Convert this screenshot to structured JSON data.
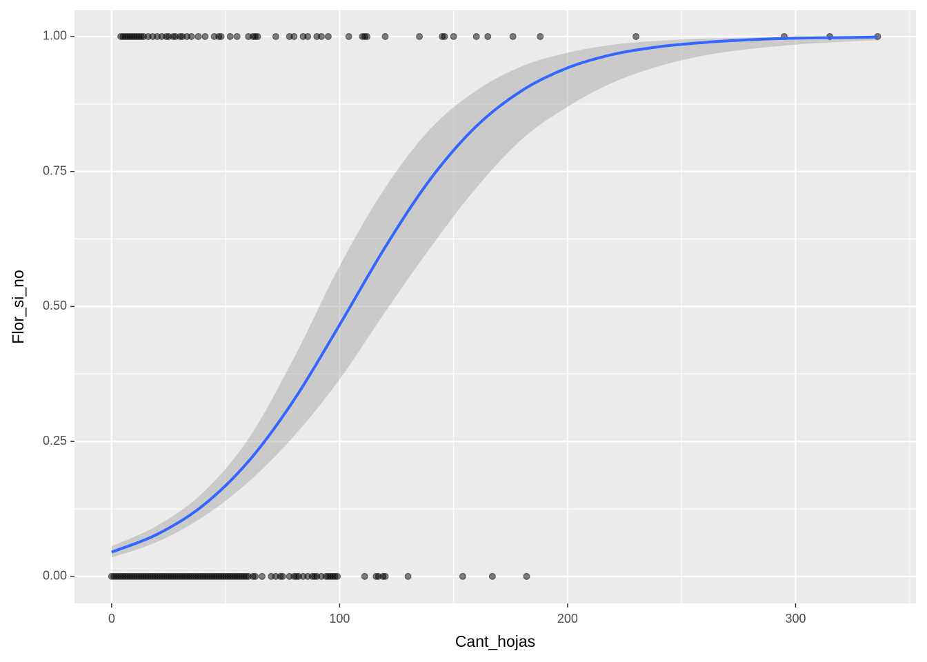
{
  "chart_data": {
    "type": "scatter",
    "x_label": "Cant_hojas",
    "y_label": "Flor_si_no",
    "xlim": [
      -16.3,
      352.8
    ],
    "ylim": [
      -0.05,
      1.0485
    ],
    "xticks": [
      0,
      100,
      200,
      300
    ],
    "yticks": [
      {
        "value": 0,
        "label": "0.00"
      },
      {
        "value": 0.25,
        "label": "0.25"
      },
      {
        "value": 0.5,
        "label": "0.50"
      },
      {
        "value": 0.75,
        "label": "0.75"
      },
      {
        "value": 1,
        "label": "1.00"
      }
    ],
    "x_minor_breaks": [
      50,
      150,
      250,
      350
    ],
    "y_minor_breaks": [
      0.125,
      0.375,
      0.625,
      0.875
    ],
    "grid": true,
    "series": [
      {
        "color": "#000000",
        "x": [
          4,
          5,
          6,
          7,
          8,
          9,
          10,
          11,
          12,
          13,
          14,
          16,
          18,
          20,
          22,
          24,
          25,
          27,
          28,
          30,
          31,
          33,
          35,
          38,
          41,
          45,
          47,
          48,
          52,
          55,
          60,
          62,
          63,
          64,
          72,
          78,
          80,
          84,
          86,
          90,
          92,
          95,
          104,
          110,
          111,
          112,
          120,
          135,
          145,
          146,
          150,
          160,
          165,
          176,
          188,
          230,
          295,
          315,
          336
        ],
        "values": [
          1,
          1,
          1,
          1,
          1,
          1,
          1,
          1,
          1,
          1,
          1,
          1,
          1,
          1,
          1,
          1,
          1,
          1,
          1,
          1,
          1,
          1,
          1,
          1,
          1,
          1,
          1,
          1,
          1,
          1,
          1,
          1,
          1,
          1,
          1,
          1,
          1,
          1,
          1,
          1,
          1,
          1,
          1,
          1,
          1,
          1,
          1,
          1,
          1,
          1,
          1,
          1,
          1,
          1,
          1,
          1,
          1,
          1,
          1
        ]
      },
      {
        "color": "#000000",
        "x": [
          0,
          1,
          2,
          3,
          4,
          5,
          6,
          7,
          8,
          9,
          10,
          11,
          12,
          13,
          14,
          15,
          16,
          17,
          18,
          19,
          20,
          21,
          22,
          23,
          24,
          25,
          26,
          27,
          28,
          29,
          30,
          31,
          32,
          33,
          34,
          35,
          36,
          37,
          38,
          39,
          40,
          41,
          42,
          43,
          44,
          45,
          46,
          47,
          48,
          49,
          50,
          51,
          52,
          53,
          54,
          55,
          56,
          57,
          58,
          59,
          60,
          62,
          63,
          66,
          70,
          72,
          74,
          75,
          78,
          80,
          81,
          82,
          84,
          86,
          88,
          89,
          90,
          92,
          94,
          95,
          96,
          97,
          98,
          99,
          111,
          116,
          117,
          119,
          120,
          130,
          154,
          167,
          182
        ],
        "values": [
          0,
          0,
          0,
          0,
          0,
          0,
          0,
          0,
          0,
          0,
          0,
          0,
          0,
          0,
          0,
          0,
          0,
          0,
          0,
          0,
          0,
          0,
          0,
          0,
          0,
          0,
          0,
          0,
          0,
          0,
          0,
          0,
          0,
          0,
          0,
          0,
          0,
          0,
          0,
          0,
          0,
          0,
          0,
          0,
          0,
          0,
          0,
          0,
          0,
          0,
          0,
          0,
          0,
          0,
          0,
          0,
          0,
          0,
          0,
          0,
          0,
          0,
          0,
          0,
          0,
          0,
          0,
          0,
          0,
          0,
          0,
          0,
          0,
          0,
          0,
          0,
          0,
          0,
          0,
          0,
          0,
          0,
          0,
          0,
          0,
          0,
          0,
          0,
          0,
          0,
          0,
          0,
          0
        ]
      }
    ],
    "smooth": {
      "color": "#3366ff",
      "band_color": "#999999",
      "x": [
        0,
        20,
        40,
        60,
        80,
        100,
        120,
        140,
        160,
        180,
        200,
        220,
        240,
        260,
        280,
        300,
        320,
        336
      ],
      "fit": [
        0.045,
        0.078,
        0.131,
        0.213,
        0.327,
        0.466,
        0.61,
        0.737,
        0.834,
        0.9,
        0.942,
        0.967,
        0.981,
        0.989,
        0.994,
        0.997,
        0.998,
        0.999
      ],
      "lower": [
        0.035,
        0.064,
        0.11,
        0.175,
        0.26,
        0.365,
        0.49,
        0.61,
        0.72,
        0.81,
        0.87,
        0.915,
        0.945,
        0.965,
        0.977,
        0.985,
        0.99,
        0.993
      ],
      "upper": [
        0.056,
        0.094,
        0.155,
        0.255,
        0.405,
        0.575,
        0.72,
        0.83,
        0.9,
        0.945,
        0.97,
        0.985,
        0.992,
        0.996,
        0.998,
        0.999,
        0.9995,
        0.9997
      ]
    }
  }
}
